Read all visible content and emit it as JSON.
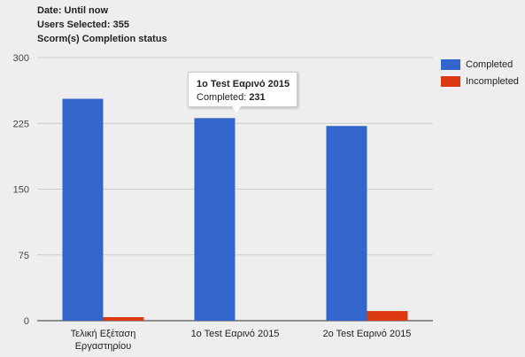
{
  "header": {
    "date_line": "Date: Until now",
    "users_line": "Users Selected: 355",
    "title_line": "Scorm(s) Completion status"
  },
  "tooltip": {
    "title": "1o Test Εαρινό 2015",
    "label": "Completed: ",
    "value": "231"
  },
  "chart_data": {
    "type": "bar",
    "title": "Scorm(s) Completion status",
    "categories": [
      "Τελική Εξέταση Εργαστηρίου",
      "1o Test Εαρινό 2015",
      "2o Test Εαρινό 2015"
    ],
    "category_lines": [
      [
        "Τελική Εξέταση",
        "Εργαστηρίου"
      ],
      [
        "1o Test Εαρινό 2015"
      ],
      [
        "2o Test Εαρινό 2015"
      ]
    ],
    "series": [
      {
        "name": "Completed",
        "color": "#3366cc",
        "values": [
          253,
          231,
          222
        ]
      },
      {
        "name": "Incompleted",
        "color": "#dc3912",
        "values": [
          4,
          0,
          11
        ]
      }
    ],
    "ylim": [
      0,
      300
    ],
    "yticks": [
      0,
      75,
      150,
      225,
      300
    ],
    "grid": true,
    "legend_position": "right"
  }
}
